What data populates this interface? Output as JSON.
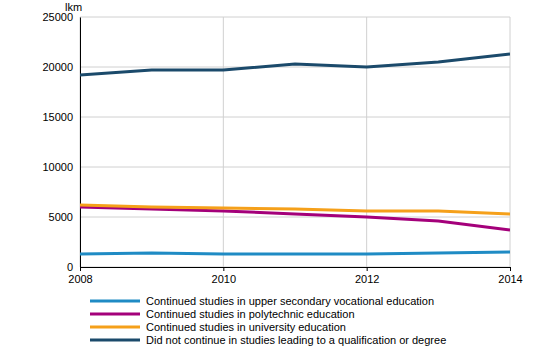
{
  "chart_data": {
    "type": "line",
    "y_label": "lkm",
    "x": [
      2008,
      2009,
      2010,
      2011,
      2012,
      2013,
      2014
    ],
    "xlim": [
      2008,
      2014
    ],
    "xticks": [
      2008,
      2010,
      2012,
      2014
    ],
    "ylim": [
      0,
      25000
    ],
    "yticks": [
      0,
      5000,
      10000,
      15000,
      20000,
      25000
    ],
    "grid": true,
    "legend": "bottom",
    "series": [
      {
        "name": "Continued studies in upper secondary vocational education",
        "color": "#1f8bc4",
        "values": [
          1300,
          1400,
          1300,
          1300,
          1300,
          1400,
          1500
        ]
      },
      {
        "name": "Continued studies in polytechnic education",
        "color": "#a4007a",
        "values": [
          6000,
          5800,
          5600,
          5300,
          5000,
          4600,
          3700
        ]
      },
      {
        "name": "Continued studies in university education",
        "color": "#f5a01a",
        "values": [
          6200,
          6000,
          5900,
          5800,
          5600,
          5600,
          5300
        ]
      },
      {
        "name": "Did not continue in studies leading to a qualification or degree",
        "color": "#1b4a6b",
        "values": [
          19200,
          19700,
          19700,
          20300,
          20000,
          20500,
          21300
        ]
      }
    ]
  }
}
